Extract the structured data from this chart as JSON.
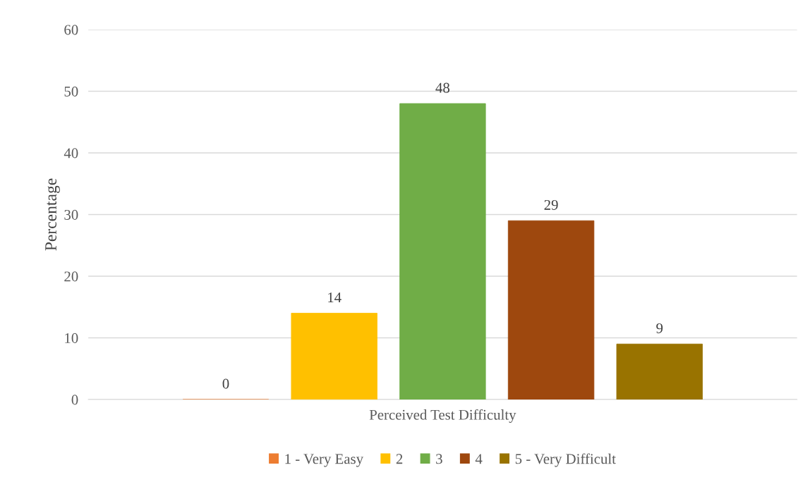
{
  "chart_data": {
    "type": "bar",
    "ylabel": "Percentage",
    "categories": [
      "Perceived Test Difficulty"
    ],
    "series": [
      {
        "name": "1 - Very Easy",
        "color": "#ed7d31",
        "values": [
          0
        ]
      },
      {
        "name": "2",
        "color": "#ffc000",
        "values": [
          14
        ]
      },
      {
        "name": "3",
        "color": "#70ad47",
        "values": [
          48
        ]
      },
      {
        "name": "4",
        "color": "#9e480e",
        "values": [
          29
        ]
      },
      {
        "name": "5 - Very Difficult",
        "color": "#997300",
        "values": [
          9
        ]
      }
    ],
    "ylim": [
      0,
      60
    ],
    "yticks": [
      0,
      10,
      20,
      30,
      40,
      50,
      60
    ],
    "grid": "y",
    "legend": "bottom",
    "data_labels": true
  }
}
